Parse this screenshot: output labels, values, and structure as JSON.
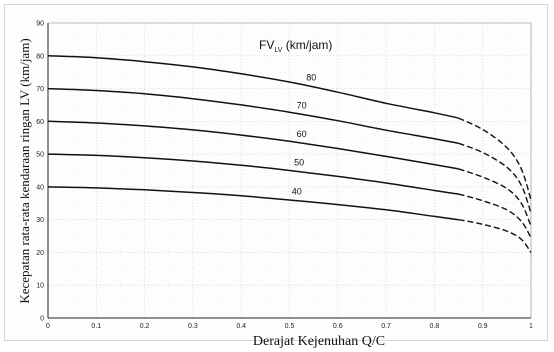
{
  "chart_data": {
    "type": "line",
    "title": "",
    "legend_title": {
      "main": "FV",
      "sub": "LV",
      "unit": " (km/jam)"
    },
    "xlabel": "Derajat Kejenuhan Q/C",
    "ylabel": "Kecepatan rata-rata kendaraan ringan LV (km/jam)",
    "xlim": [
      0,
      1
    ],
    "ylim": [
      0,
      90
    ],
    "x_ticks": [
      "0",
      "0.1",
      "0.2",
      "0.3",
      "0.4",
      "0.5",
      "0.6",
      "0.7",
      "0.8",
      "0.9",
      "1"
    ],
    "y_ticks": [
      "0",
      "10",
      "20",
      "30",
      "40",
      "50",
      "60",
      "70",
      "80",
      "90"
    ],
    "grid": true,
    "series": [
      {
        "name": "80",
        "solid": [
          [
            0,
            80
          ],
          [
            0.1,
            79.4
          ],
          [
            0.2,
            78.2
          ],
          [
            0.3,
            76.6
          ],
          [
            0.4,
            74.5
          ],
          [
            0.5,
            72.0
          ],
          [
            0.6,
            68.9
          ],
          [
            0.7,
            65.5
          ],
          [
            0.8,
            62.6
          ],
          [
            0.85,
            61.0
          ]
        ],
        "dashed": [
          [
            0.85,
            61.0
          ],
          [
            0.9,
            57.5
          ],
          [
            0.95,
            52.0
          ],
          [
            0.98,
            45.5
          ],
          [
            1.0,
            36.0
          ]
        ]
      },
      {
        "name": "70",
        "solid": [
          [
            0,
            70
          ],
          [
            0.1,
            69.4
          ],
          [
            0.2,
            68.4
          ],
          [
            0.3,
            66.9
          ],
          [
            0.4,
            65.0
          ],
          [
            0.5,
            62.8
          ],
          [
            0.6,
            60.2
          ],
          [
            0.7,
            57.3
          ],
          [
            0.8,
            54.7
          ],
          [
            0.85,
            53.3
          ]
        ],
        "dashed": [
          [
            0.85,
            53.3
          ],
          [
            0.9,
            50.5
          ],
          [
            0.95,
            46.0
          ],
          [
            0.98,
            40.5
          ],
          [
            1.0,
            32.0
          ]
        ]
      },
      {
        "name": "60",
        "solid": [
          [
            0,
            60
          ],
          [
            0.1,
            59.5
          ],
          [
            0.2,
            58.6
          ],
          [
            0.3,
            57.4
          ],
          [
            0.4,
            55.8
          ],
          [
            0.5,
            53.9
          ],
          [
            0.6,
            51.7
          ],
          [
            0.7,
            49.3
          ],
          [
            0.8,
            46.8
          ],
          [
            0.85,
            45.5
          ]
        ],
        "dashed": [
          [
            0.85,
            45.5
          ],
          [
            0.9,
            43.0
          ],
          [
            0.95,
            39.5
          ],
          [
            0.98,
            35.0
          ],
          [
            1.0,
            28.0
          ]
        ]
      },
      {
        "name": "50",
        "solid": [
          [
            0,
            50
          ],
          [
            0.1,
            49.6
          ],
          [
            0.2,
            48.9
          ],
          [
            0.3,
            47.9
          ],
          [
            0.4,
            46.6
          ],
          [
            0.5,
            45.0
          ],
          [
            0.6,
            43.2
          ],
          [
            0.7,
            41.2
          ],
          [
            0.8,
            38.9
          ],
          [
            0.85,
            37.8
          ]
        ],
        "dashed": [
          [
            0.85,
            37.8
          ],
          [
            0.9,
            35.8
          ],
          [
            0.95,
            33.0
          ],
          [
            0.98,
            29.5
          ],
          [
            1.0,
            24.5
          ]
        ]
      },
      {
        "name": "40",
        "solid": [
          [
            0,
            40
          ],
          [
            0.1,
            39.7
          ],
          [
            0.2,
            39.1
          ],
          [
            0.3,
            38.3
          ],
          [
            0.4,
            37.3
          ],
          [
            0.5,
            36.0
          ],
          [
            0.6,
            34.6
          ],
          [
            0.7,
            33.0
          ],
          [
            0.8,
            31.0
          ],
          [
            0.85,
            30.0
          ]
        ],
        "dashed": [
          [
            0.85,
            30.0
          ],
          [
            0.9,
            28.6
          ],
          [
            0.95,
            26.5
          ],
          [
            0.98,
            24.0
          ],
          [
            1.0,
            20.0
          ]
        ]
      }
    ],
    "curve_label_x": [
      0.545,
      0.525,
      0.525,
      0.52,
      0.515
    ],
    "colors": {
      "line": "#111111",
      "grid": "#c9c9c9",
      "axis": "#222222"
    }
  }
}
